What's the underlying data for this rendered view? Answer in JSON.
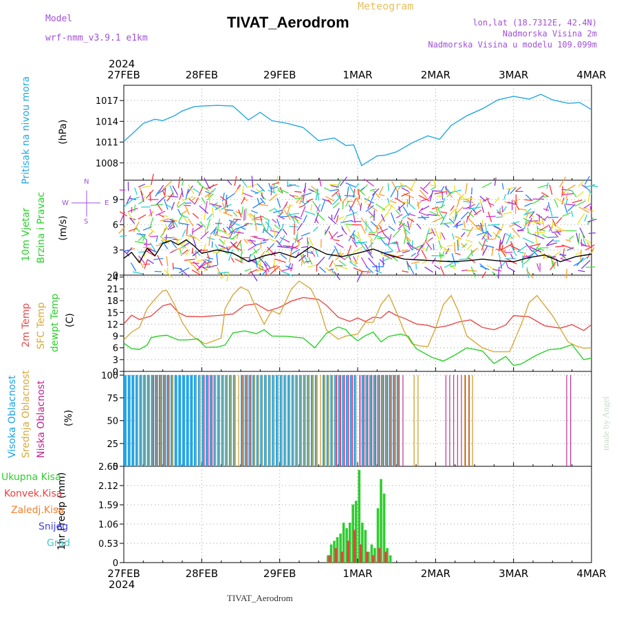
{
  "header": {
    "model_label": "Model",
    "model_version": "wrf-nmm_v3.9.1 e1km",
    "title": "TIVAT_Aerodrom",
    "subtitle": "Meteogram",
    "lonlat": "lon,lat (18.7312E, 42.4N)",
    "elevation": "Nadmorska Visina 2m",
    "model_elevation": "Nadmorska Visina u modelu 109.099m",
    "watermark": "made by Angel"
  },
  "footer": {
    "station": "TIVAT_Aerodrom"
  },
  "colors": {
    "pressure": "#22a8e0",
    "temp2m": "#e84848",
    "sfc_temp": "#d8a838",
    "dewpoint": "#28d028",
    "high_cloud": "#18a0e8",
    "mid_cloud": "#d8a838",
    "low_cloud": "#c02090",
    "total_precip": "#30cc30",
    "conv_precip": "#e84040",
    "frozen_precip": "#f08030",
    "snow": "#4040e0",
    "hail": "#40c8c8",
    "purple": "#a050d8"
  },
  "chart_data": {
    "type": "line",
    "x_labels": [
      "27FEB",
      "28FEB",
      "29FEB",
      "1MAR",
      "2MAR",
      "3MAR",
      "4MAR"
    ],
    "year": "2024",
    "panels": [
      {
        "id": "pressure",
        "ylabel": [
          "Pritisak na nivou mora",
          "(hPa)"
        ],
        "yticks": [
          1008,
          1011,
          1014,
          1017
        ],
        "ylim": [
          1005.5,
          1019.2
        ],
        "series": [
          {
            "name": "Pritisak na nivou mora",
            "color_key": "pressure",
            "x": [
              0,
              0.1,
              0.25,
              0.4,
              0.5,
              0.65,
              0.75,
              0.9,
              1.0,
              1.2,
              1.4,
              1.6,
              1.75,
              1.9,
              2.1,
              2.3,
              2.5,
              2.7,
              2.85,
              2.95,
              3.05,
              3.15,
              3.25,
              3.35,
              3.5,
              3.7,
              3.9,
              4.05,
              4.2,
              4.4,
              4.6,
              4.8,
              5.0,
              5.2,
              5.35,
              5.5,
              5.7,
              5.85,
              6.0
            ],
            "y": [
              1011.1,
              1012.1,
              1013.7,
              1014.3,
              1014.1,
              1014.8,
              1015.5,
              1016.1,
              1016.2,
              1016.3,
              1016.2,
              1014.2,
              1015.3,
              1014.1,
              1013.7,
              1013.1,
              1011.2,
              1011.6,
              1010.5,
              1010.6,
              1007.6,
              1008.3,
              1009.0,
              1009.1,
              1009.6,
              1010.9,
              1011.9,
              1011.4,
              1013.4,
              1014.8,
              1015.8,
              1017.1,
              1017.6,
              1017.2,
              1017.9,
              1017.1,
              1016.6,
              1016.7,
              1015.7
            ]
          }
        ]
      },
      {
        "id": "wind",
        "ylabel": [
          "10m Vjetar",
          "Brzina i Pravac",
          "(m/s)"
        ],
        "compass": [
          "N",
          "W",
          "E",
          "S"
        ],
        "yticks": [
          0,
          3,
          6,
          9
        ],
        "ylim": [
          0,
          11.3
        ],
        "series": [
          {
            "name": "Brzina",
            "color": "#000000",
            "x": [
              0,
              0.1,
              0.2,
              0.3,
              0.4,
              0.5,
              0.6,
              0.7,
              0.8,
              0.9,
              1.0,
              1.2,
              1.4,
              1.6,
              1.8,
              2.0,
              2.2,
              2.4,
              2.6,
              2.8,
              3.0,
              3.2,
              3.4,
              3.6,
              3.8,
              4.0,
              4.2,
              4.4,
              4.6,
              4.8,
              5.0,
              5.2,
              5.4,
              5.6,
              5.8,
              6.0
            ],
            "y": [
              2.0,
              2.7,
              1.5,
              3.2,
              2.3,
              3.8,
              4.1,
              3.6,
              4.2,
              3.5,
              2.6,
              3.0,
              2.6,
              1.6,
              2.3,
              2.7,
              2.1,
              3.4,
              2.5,
              2.2,
              2.6,
              3.1,
              2.4,
              1.9,
              1.8,
              1.7,
              1.6,
              1.7,
              1.9,
              1.7,
              1.6,
              2.1,
              2.4,
              1.6,
              2.2,
              2.5
            ]
          }
        ]
      },
      {
        "id": "temperature",
        "ylabel": [
          "2m Temp",
          "SFC Temp",
          "dewpt Temp",
          "(C)"
        ],
        "yticks": [
          0,
          3,
          6,
          9,
          12,
          15,
          18,
          21,
          24
        ],
        "ylim": [
          0,
          24.5
        ],
        "series": [
          {
            "name": "2m Temp",
            "color_key": "temp2m",
            "x": [
              0,
              0.1,
              0.2,
              0.35,
              0.5,
              0.6,
              0.7,
              0.8,
              1.0,
              1.25,
              1.4,
              1.55,
              1.7,
              1.85,
              2.0,
              2.15,
              2.3,
              2.5,
              2.6,
              2.75,
              2.9,
              3.0,
              3.1,
              3.2,
              3.3,
              3.4,
              3.5,
              3.6,
              3.75,
              3.9,
              4.0,
              4.15,
              4.3,
              4.45,
              4.6,
              4.75,
              4.9,
              5.0,
              5.2,
              5.4,
              5.6,
              5.75,
              5.9,
              6.0
            ],
            "y": [
              12.1,
              14.3,
              13.2,
              14.1,
              16.7,
              17.2,
              15.0,
              14.0,
              13.9,
              14.3,
              14.6,
              16.8,
              17.2,
              15.4,
              16.3,
              17.9,
              18.8,
              18.3,
              16.8,
              13.8,
              12.7,
              13.6,
              12.7,
              13.8,
              13.6,
              15.3,
              14.2,
              13.5,
              12.1,
              11.7,
              11.1,
              11.6,
              12.6,
              13.1,
              11.2,
              10.6,
              11.8,
              14.2,
              13.9,
              11.6,
              11.0,
              11.9,
              10.4,
              11.9
            ]
          },
          {
            "name": "SFC Temp",
            "color_key": "sfc_temp",
            "x": [
              0,
              0.1,
              0.2,
              0.3,
              0.4,
              0.5,
              0.55,
              0.65,
              0.75,
              0.85,
              0.95,
              1.05,
              1.25,
              1.3,
              1.4,
              1.5,
              1.6,
              1.7,
              1.8,
              1.9,
              2.0,
              2.15,
              2.25,
              2.4,
              2.5,
              2.6,
              2.75,
              2.85,
              3.0,
              3.1,
              3.2,
              3.3,
              3.4,
              3.5,
              3.6,
              3.7,
              3.8,
              3.9,
              4.0,
              4.1,
              4.2,
              4.3,
              4.4,
              4.6,
              4.75,
              4.95,
              5.1,
              5.2,
              5.3,
              5.5,
              5.7,
              5.8,
              5.9,
              6.0
            ],
            "y": [
              8.0,
              10.0,
              11.2,
              16.0,
              18.4,
              20.5,
              20.6,
              17.0,
              12.5,
              9.5,
              8.0,
              7.0,
              8.5,
              16.0,
              19.5,
              21.5,
              20.5,
              16.0,
              12.0,
              15.5,
              14.5,
              21.0,
              23.0,
              21.0,
              17.0,
              10.5,
              8.2,
              9.0,
              9.5,
              12.5,
              12.5,
              17.0,
              19.5,
              15.0,
              10.0,
              7.0,
              6.5,
              6.3,
              11.0,
              17.0,
              19.3,
              15.0,
              9.0,
              6.0,
              5.0,
              5.0,
              12.0,
              17.5,
              19.3,
              14.2,
              7.5,
              6.5,
              5.9,
              6.0
            ]
          },
          {
            "name": "dewpt Temp",
            "color_key": "dewpoint",
            "x": [
              0,
              0.1,
              0.2,
              0.3,
              0.35,
              0.45,
              0.55,
              0.7,
              0.8,
              0.95,
              1.05,
              1.2,
              1.3,
              1.4,
              1.55,
              1.7,
              1.8,
              1.9,
              2.1,
              2.3,
              2.45,
              2.6,
              2.75,
              2.85,
              2.9,
              3.0,
              3.1,
              3.2,
              3.3,
              3.4,
              3.55,
              3.65,
              3.75,
              3.95,
              4.1,
              4.25,
              4.4,
              4.6,
              4.75,
              4.9,
              5.0,
              5.1,
              5.3,
              5.45,
              5.6,
              5.75,
              5.9,
              6.0
            ],
            "y": [
              7.2,
              5.8,
              5.6,
              6.7,
              8.6,
              9.0,
              9.2,
              8.0,
              8.0,
              8.3,
              6.1,
              6.2,
              6.7,
              9.8,
              10.3,
              9.6,
              10.6,
              9.0,
              8.9,
              8.5,
              6.0,
              9.7,
              11.3,
              10.6,
              9.4,
              7.8,
              9.1,
              10.0,
              7.5,
              8.9,
              9.5,
              8.9,
              5.8,
              3.6,
              2.6,
              4.2,
              6.0,
              5.2,
              2.0,
              3.8,
              1.5,
              1.9,
              4.2,
              5.5,
              5.8,
              6.8,
              3.0,
              3.4
            ]
          }
        ]
      },
      {
        "id": "clouds",
        "ylabel": [
          "Visoka Oblacnost",
          "Srednja Oblacnost",
          "Niska Oblacnost",
          "(%)"
        ],
        "yticks": [
          0,
          25,
          50,
          75,
          100
        ],
        "ylim": [
          0,
          104
        ],
        "high_cloud_spans": [
          [
            0.0,
            0.95
          ],
          [
            0.15,
            0.55
          ],
          [
            0.9,
            1.45
          ],
          [
            1.5,
            2.0
          ],
          [
            2.0,
            2.45
          ],
          [
            2.55,
            2.95
          ],
          [
            3.05,
            3.5
          ]
        ],
        "mid_cloud_spans": [
          [
            0.15,
            0.6
          ],
          [
            0.9,
            1.5
          ],
          [
            1.5,
            2.45
          ],
          [
            2.5,
            3.5
          ],
          [
            3.7,
            3.75
          ],
          [
            4.35,
            4.45
          ]
        ],
        "low_cloud_spans": [
          [
            0.35,
            0.55
          ],
          [
            1.0,
            1.15
          ],
          [
            1.5,
            1.6
          ],
          [
            2.7,
            2.9
          ],
          [
            3.0,
            3.55
          ],
          [
            4.1,
            4.4
          ],
          [
            5.65,
            5.7
          ]
        ]
      },
      {
        "id": "precip",
        "ylabel": [
          "1hr Precip (mm)"
        ],
        "legend": [
          "Ukupna Kisa",
          "Konvek.Kisa",
          "Zaledj.Kisa",
          "Snijeg",
          "Grad"
        ],
        "yticks": [
          0,
          0.53,
          1.06,
          1.59,
          2.12,
          2.65
        ],
        "ylim": [
          0,
          2.65
        ],
        "series": [
          {
            "name": "Ukupna Kisa",
            "color_key": "total_precip",
            "x": [
              2.62,
              2.66,
              2.7,
              2.74,
              2.78,
              2.82,
              2.86,
              2.9,
              2.94,
              2.98,
              3.02,
              3.06,
              3.1,
              3.14,
              3.18,
              3.22,
              3.26,
              3.3,
              3.34,
              3.38,
              3.42
            ],
            "y": [
              0.2,
              0.5,
              0.6,
              0.7,
              0.8,
              1.1,
              0.95,
              1.1,
              1.6,
              1.7,
              2.55,
              1.1,
              0.9,
              0.3,
              0.5,
              0.4,
              1.5,
              2.3,
              1.9,
              0.4,
              0.2
            ]
          },
          {
            "name": "Konvek.Kisa",
            "color_key": "conv_precip",
            "x": [
              2.64,
              2.72,
              2.8,
              2.88,
              2.96,
              3.04,
              3.12,
              3.2,
              3.28,
              3.36
            ],
            "y": [
              0.2,
              0.4,
              0.3,
              0.6,
              0.9,
              0.5,
              0.3,
              0.2,
              0.4,
              0.3
            ]
          }
        ]
      }
    ]
  }
}
